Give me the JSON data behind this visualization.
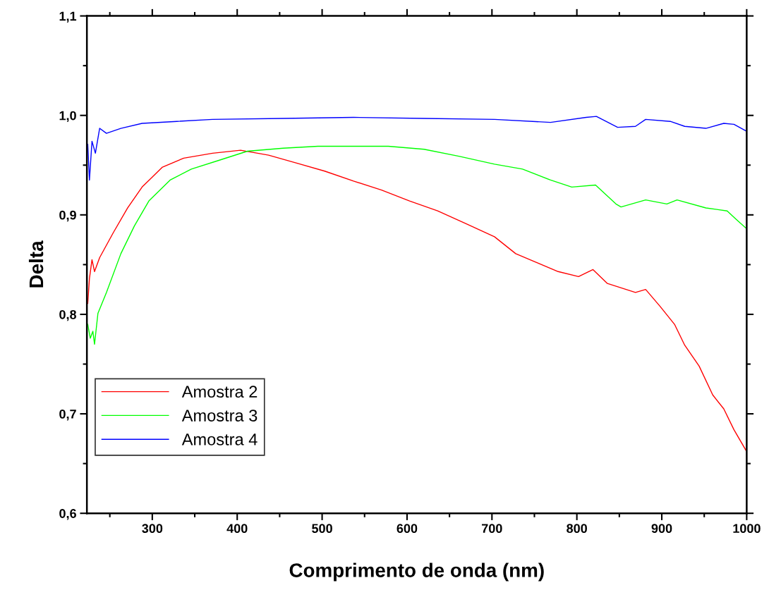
{
  "chart_data": {
    "type": "line",
    "xlabel": "Comprimento de onda (nm)",
    "ylabel": "Delta",
    "xlim": [
      223,
      1000
    ],
    "xticks": [
      300,
      400,
      500,
      600,
      700,
      800,
      900,
      1000
    ],
    "ylim": [
      0.6,
      1.1
    ],
    "yticks": [
      {
        "value": 0.6,
        "label": "0,6"
      },
      {
        "value": 0.7,
        "label": "0,7"
      },
      {
        "value": 0.8,
        "label": "0,8"
      },
      {
        "value": 0.9,
        "label": "0,9"
      },
      {
        "value": 1.0,
        "label": "1,0"
      },
      {
        "value": 1.1,
        "label": "1,1"
      }
    ],
    "grid": false,
    "legend": "bottom left",
    "marker": "none",
    "line_style": "solid",
    "series": [
      {
        "name": "Amostra 2",
        "color": "#ff0000",
        "x": [
          224,
          226,
          229,
          232,
          238,
          254,
          271,
          288,
          312,
          337,
          371,
          404,
          437,
          470,
          503,
          537,
          570,
          603,
          636,
          670,
          703,
          728,
          753,
          778,
          802,
          819,
          836,
          869,
          881,
          898,
          915,
          927,
          944,
          960,
          973,
          985,
          1000
        ],
        "values": [
          0.811,
          0.836,
          0.855,
          0.843,
          0.857,
          0.882,
          0.907,
          0.928,
          0.948,
          0.957,
          0.962,
          0.965,
          0.96,
          0.952,
          0.944,
          0.934,
          0.925,
          0.914,
          0.904,
          0.891,
          0.878,
          0.861,
          0.852,
          0.843,
          0.838,
          0.845,
          0.831,
          0.822,
          0.825,
          0.808,
          0.79,
          0.769,
          0.748,
          0.719,
          0.705,
          0.684,
          0.662
        ]
      },
      {
        "name": "Amostra 3",
        "color": "#00ff00",
        "x": [
          224,
          227,
          230,
          232,
          236,
          246,
          263,
          279,
          296,
          321,
          346,
          379,
          412,
          454,
          495,
          537,
          578,
          620,
          661,
          703,
          736,
          769,
          794,
          822,
          846,
          852,
          881,
          906,
          918,
          952,
          977,
          987,
          1000
        ],
        "values": [
          0.79,
          0.776,
          0.783,
          0.77,
          0.801,
          0.822,
          0.861,
          0.889,
          0.914,
          0.935,
          0.946,
          0.955,
          0.964,
          0.967,
          0.969,
          0.969,
          0.969,
          0.966,
          0.959,
          0.951,
          0.946,
          0.935,
          0.928,
          0.93,
          0.911,
          0.908,
          0.915,
          0.911,
          0.915,
          0.907,
          0.904,
          0.896,
          0.886
        ]
      },
      {
        "name": "Amostra 4",
        "color": "#0000ff",
        "x": [
          224,
          226,
          229,
          233,
          238,
          246,
          263,
          288,
          329,
          371,
          454,
          537,
          620,
          703,
          769,
          811,
          823,
          848,
          869,
          881,
          910,
          927,
          952,
          973,
          985,
          1000
        ],
        "values": [
          0.971,
          0.935,
          0.974,
          0.962,
          0.987,
          0.982,
          0.987,
          0.992,
          0.994,
          0.996,
          0.997,
          0.998,
          0.997,
          0.996,
          0.993,
          0.998,
          0.999,
          0.988,
          0.989,
          0.996,
          0.994,
          0.989,
          0.987,
          0.992,
          0.991,
          0.984
        ]
      }
    ]
  }
}
